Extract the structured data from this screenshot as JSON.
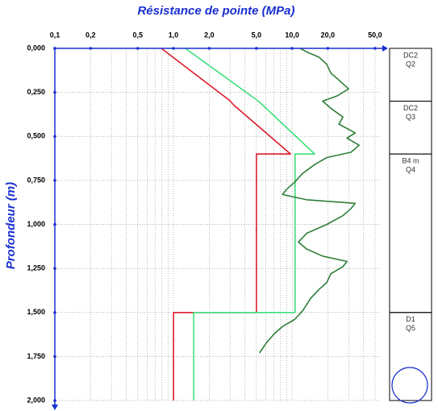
{
  "chart_data": {
    "type": "line",
    "title": "Résistance de pointe (MPa)",
    "y_label": "Profondeur (m)",
    "x_scale": "log",
    "y_inverted": true,
    "grid": true,
    "xlim": [
      0.1,
      55
    ],
    "ylim": [
      0,
      2
    ],
    "xticks": [
      {
        "value": 0.1,
        "label": "0,1"
      },
      {
        "value": 0.2,
        "label": "0,2"
      },
      {
        "value": 0.5,
        "label": "0,5"
      },
      {
        "value": 1,
        "label": "1,0"
      },
      {
        "value": 2,
        "label": "2,0"
      },
      {
        "value": 5,
        "label": "5,0"
      },
      {
        "value": 10,
        "label": "10,0"
      },
      {
        "value": 20,
        "label": "20,0"
      },
      {
        "value": 50,
        "label": "50,0"
      }
    ],
    "xminorticks": [
      0.3,
      0.4,
      0.6,
      0.7,
      0.8,
      0.9,
      3,
      4,
      6,
      7,
      8,
      9,
      30,
      40
    ],
    "yticks": [
      {
        "value": 0,
        "label": "0,000"
      },
      {
        "value": 0.25,
        "label": "0,250"
      },
      {
        "value": 0.5,
        "label": "0,500"
      },
      {
        "value": 0.75,
        "label": "0,750"
      },
      {
        "value": 1,
        "label": "1,000"
      },
      {
        "value": 1.25,
        "label": "1,250"
      },
      {
        "value": 1.5,
        "label": "1,500"
      },
      {
        "value": 1.75,
        "label": "1,750"
      },
      {
        "value": 2,
        "label": "2,000"
      }
    ],
    "series": [
      {
        "color": "#dd1c2c",
        "x": [
          0.79,
          2.99,
          3.2,
          9.7,
          5.0,
          5.0,
          1.0,
          1.0
        ],
        "y": [
          0,
          0.297,
          0.32,
          0.6,
          0.6,
          1.5,
          1.5,
          2.0
        ]
      },
      {
        "color": "#3ee07a",
        "x": [
          1.26,
          5.2,
          15.5,
          10.6,
          10.6,
          1.48,
          1.48
        ],
        "y": [
          0,
          0.3,
          0.6,
          0.6,
          1.5,
          1.5,
          2.0
        ]
      },
      {
        "color": "#2f7f3a",
        "x": [
          11.7,
          13.3,
          16.8,
          19.6,
          21.2,
          24.8,
          29.9,
          24.0,
          18.1,
          21.2,
          26.8,
          24.8,
          34.0,
          29.0,
          36.7,
          31.4,
          19.6,
          15.5,
          12.3,
          10.5,
          9.0,
          8.3,
          13.3,
          34.0,
          31.4,
          26.8,
          19.6,
          13.3,
          11.3,
          13.3,
          18.1,
          29.0,
          26.8,
          21.2,
          19.6,
          16.8,
          14.3,
          12.3,
          10.5,
          8.3,
          7.1,
          6.1,
          5.3
        ],
        "y": [
          0,
          0.02,
          0.05,
          0.09,
          0.14,
          0.18,
          0.23,
          0.27,
          0.3,
          0.34,
          0.39,
          0.43,
          0.48,
          0.51,
          0.55,
          0.59,
          0.62,
          0.66,
          0.71,
          0.76,
          0.8,
          0.83,
          0.86,
          0.88,
          0.91,
          0.95,
          1.0,
          1.05,
          1.1,
          1.14,
          1.18,
          1.21,
          1.24,
          1.28,
          1.33,
          1.37,
          1.42,
          1.49,
          1.54,
          1.58,
          1.62,
          1.67,
          1.73
        ]
      }
    ],
    "layers": [
      {
        "code": "DC2",
        "class": "Q2",
        "top": 0,
        "bottom": 0.3
      },
      {
        "code": "DC2",
        "class": "Q3",
        "top": 0.3,
        "bottom": 0.6
      },
      {
        "code": "B4 m",
        "class": "Q4",
        "top": 0.6,
        "bottom": 1.5
      },
      {
        "code": "D1",
        "class": "Q5",
        "top": 1.5,
        "bottom": 2.0
      }
    ]
  }
}
